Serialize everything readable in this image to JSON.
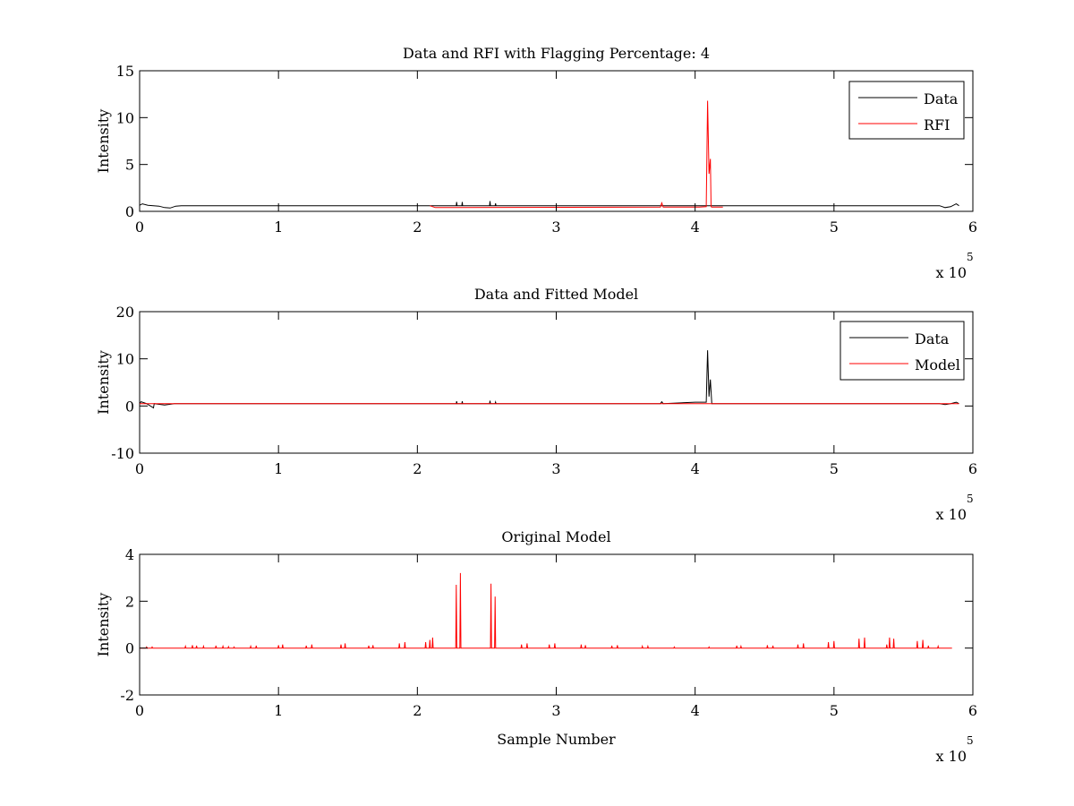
{
  "figure": {
    "background": "#ffffff"
  },
  "chart_data": [
    {
      "type": "line",
      "title": "Data and RFI with Flagging Percentage: 4",
      "xlabel": "",
      "ylabel": "Intensity",
      "xlim": [
        0,
        600000
      ],
      "ylim": [
        0,
        15
      ],
      "xticks": [
        0,
        100000,
        200000,
        300000,
        400000,
        500000,
        600000
      ],
      "xtick_labels": [
        "0",
        "1",
        "2",
        "3",
        "4",
        "5",
        "6"
      ],
      "yticks": [
        0,
        5,
        10,
        15
      ],
      "ytick_labels": [
        "0",
        "5",
        "10",
        "15"
      ],
      "x_multiplier": {
        "base": "x 10",
        "exponent": "5"
      },
      "legend": {
        "position": "top-right",
        "entries": [
          {
            "name": "Data",
            "color": "#000000"
          },
          {
            "name": "RFI",
            "color": "#ff0000"
          }
        ]
      },
      "series": [
        {
          "name": "Data",
          "color": "#000000",
          "x": [
            0,
            2000,
            6000,
            10000,
            14000,
            18000,
            22000,
            26000,
            30000,
            200000,
            228000,
            228300,
            228600,
            232000,
            232300,
            232600,
            252000,
            252300,
            252600,
            256000,
            256300,
            256600,
            400000,
            576000,
            580000,
            584000,
            588000,
            590000
          ],
          "y": [
            0.65,
            0.8,
            0.65,
            0.6,
            0.55,
            0.4,
            0.35,
            0.55,
            0.6,
            0.6,
            0.6,
            1.0,
            0.6,
            0.6,
            1.0,
            0.6,
            0.6,
            1.1,
            0.6,
            0.6,
            0.85,
            0.6,
            0.6,
            0.6,
            0.4,
            0.5,
            0.8,
            0.6
          ]
        },
        {
          "name": "RFI",
          "color": "#ff0000",
          "x": [
            209000,
            211000,
            213000,
            375000,
            376000,
            377000,
            403000,
            408000,
            409000,
            410000,
            411000,
            411500,
            412000,
            413000,
            415000,
            420000
          ],
          "y": [
            0.6,
            0.5,
            0.4,
            0.45,
            0.9,
            0.45,
            0.45,
            0.5,
            11.8,
            4.0,
            5.6,
            0.5,
            0.45,
            0.45,
            0.45,
            0.45
          ]
        }
      ]
    },
    {
      "type": "line",
      "title": "Data and Fitted Model",
      "xlabel": "",
      "ylabel": "Intensity",
      "xlim": [
        0,
        600000
      ],
      "ylim": [
        -10,
        20
      ],
      "xticks": [
        0,
        100000,
        200000,
        300000,
        400000,
        500000,
        600000
      ],
      "xtick_labels": [
        "0",
        "1",
        "2",
        "3",
        "4",
        "5",
        "6"
      ],
      "yticks": [
        -10,
        0,
        10,
        20
      ],
      "ytick_labels": [
        "-10",
        "0",
        "10",
        "20"
      ],
      "x_multiplier": {
        "base": "x 10",
        "exponent": "5"
      },
      "legend": {
        "position": "top-right",
        "entries": [
          {
            "name": "Data",
            "color": "#000000"
          },
          {
            "name": "Model",
            "color": "#ff0000"
          }
        ]
      },
      "series": [
        {
          "name": "Data",
          "color": "#000000",
          "x": [
            0,
            1000,
            5000,
            10000,
            10500,
            18000,
            25000,
            228000,
            228300,
            228600,
            232000,
            232300,
            232600,
            252000,
            252300,
            252600,
            256000,
            256300,
            256600,
            375000,
            376000,
            377000,
            400000,
            408000,
            409000,
            410000,
            411000,
            412000,
            576000,
            580000,
            584000,
            588000,
            590000
          ],
          "y": [
            0.5,
            0.9,
            0.5,
            -0.4,
            0.5,
            0.2,
            0.5,
            0.5,
            1.0,
            0.5,
            0.5,
            1.0,
            0.5,
            0.5,
            1.1,
            0.5,
            0.5,
            0.85,
            0.5,
            0.5,
            0.9,
            0.5,
            0.8,
            0.8,
            11.8,
            2.0,
            5.6,
            0.5,
            0.5,
            0.3,
            0.5,
            0.8,
            0.5
          ]
        },
        {
          "name": "Model",
          "color": "#ff0000",
          "x": [
            0,
            590000
          ],
          "y": [
            0.5,
            0.5
          ]
        }
      ]
    },
    {
      "type": "line",
      "title": "Original Model",
      "xlabel": "Sample Number",
      "ylabel": "Intensity",
      "xlim": [
        0,
        600000
      ],
      "ylim": [
        -2,
        4
      ],
      "xticks": [
        0,
        100000,
        200000,
        300000,
        400000,
        500000,
        600000
      ],
      "xtick_labels": [
        "0",
        "1",
        "2",
        "3",
        "4",
        "5",
        "6"
      ],
      "yticks": [
        -2,
        0,
        2,
        4
      ],
      "ytick_labels": [
        "-2",
        "0",
        "2",
        "4"
      ],
      "x_multiplier": {
        "base": "x 10",
        "exponent": "5"
      },
      "series": [
        {
          "name": "",
          "color": "#ff0000",
          "baseline": 0,
          "x_end": 585000,
          "spikes": [
            [
              5000,
              0.05
            ],
            [
              9000,
              0.05
            ],
            [
              33000,
              0.08
            ],
            [
              38000,
              0.12
            ],
            [
              41000,
              0.1
            ],
            [
              46000,
              0.08
            ],
            [
              55000,
              0.1
            ],
            [
              60000,
              0.08
            ],
            [
              64000,
              0.06
            ],
            [
              68000,
              0.05
            ],
            [
              80000,
              0.08
            ],
            [
              84000,
              0.1
            ],
            [
              100000,
              0.12
            ],
            [
              103000,
              0.15
            ],
            [
              120000,
              0.1
            ],
            [
              124000,
              0.15
            ],
            [
              145000,
              0.15
            ],
            [
              148000,
              0.2
            ],
            [
              165000,
              0.1
            ],
            [
              168000,
              0.12
            ],
            [
              187000,
              0.2
            ],
            [
              191000,
              0.25
            ],
            [
              206000,
              0.25
            ],
            [
              209000,
              0.35
            ],
            [
              211000,
              0.45
            ],
            [
              228000,
              2.7
            ],
            [
              231000,
              3.2
            ],
            [
              253000,
              2.75
            ],
            [
              256000,
              2.2
            ],
            [
              275000,
              0.15
            ],
            [
              279000,
              0.2
            ],
            [
              295000,
              0.15
            ],
            [
              299000,
              0.2
            ],
            [
              318000,
              0.15
            ],
            [
              321000,
              0.12
            ],
            [
              340000,
              0.1
            ],
            [
              344000,
              0.12
            ],
            [
              362000,
              0.08
            ],
            [
              366000,
              0.08
            ],
            [
              385000,
              0.05
            ],
            [
              410000,
              0.05
            ],
            [
              430000,
              0.1
            ],
            [
              433000,
              0.08
            ],
            [
              452000,
              0.12
            ],
            [
              456000,
              0.1
            ],
            [
              474000,
              0.15
            ],
            [
              478000,
              0.2
            ],
            [
              496000,
              0.25
            ],
            [
              500000,
              0.3
            ],
            [
              518000,
              0.4
            ],
            [
              522000,
              0.45
            ],
            [
              538000,
              0.15
            ],
            [
              540000,
              0.45
            ],
            [
              543000,
              0.4
            ],
            [
              560000,
              0.3
            ],
            [
              564000,
              0.35
            ],
            [
              568000,
              0.1
            ],
            [
              575000,
              0.08
            ]
          ]
        }
      ]
    }
  ]
}
